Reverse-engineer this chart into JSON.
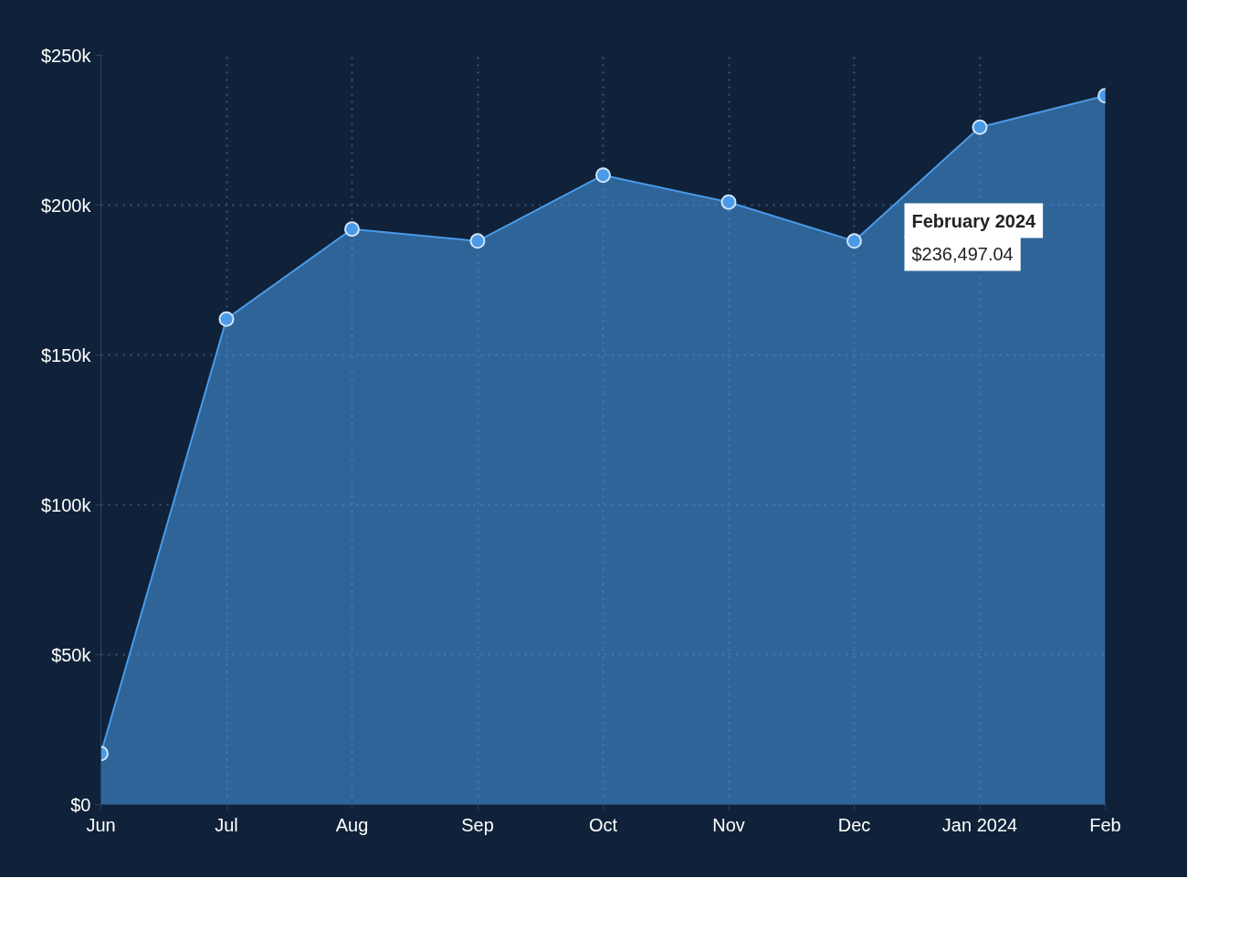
{
  "chart_data": {
    "type": "area",
    "categories": [
      "Jun",
      "Jul",
      "Aug",
      "Sep",
      "Oct",
      "Nov",
      "Dec",
      "Jan 2024",
      "Feb"
    ],
    "series": [
      {
        "color": "#4a9ae8",
        "values": [
          17000,
          162000,
          192000,
          188000,
          210000,
          201000,
          188000,
          226000,
          236497.04
        ]
      }
    ],
    "ylim": [
      0,
      250000
    ],
    "yticks": [
      {
        "value": 0,
        "label": "$0"
      },
      {
        "value": 50000,
        "label": "$50k"
      },
      {
        "value": 100000,
        "label": "$100k"
      },
      {
        "value": 150000,
        "label": "$150k"
      },
      {
        "value": 200000,
        "label": "$200k"
      },
      {
        "value": 250000,
        "label": "$250k"
      }
    ],
    "grid": true,
    "marker": "circle",
    "annotations": [
      "February 2024\n$236,497.04"
    ]
  }
}
